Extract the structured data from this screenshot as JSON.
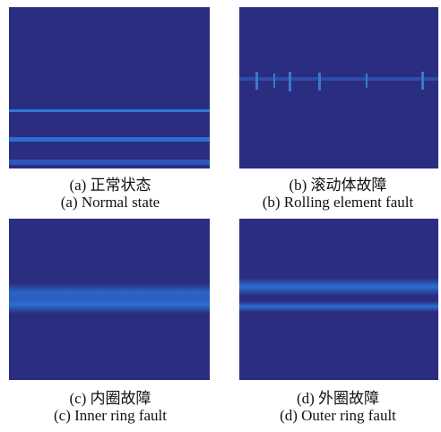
{
  "panels": [
    {
      "caption_cn": "(a)  正常状态",
      "caption_en": "(a)  Normal state"
    },
    {
      "caption_cn": "(b)  滚动体故障",
      "caption_en": "(b)  Rolling element fault"
    },
    {
      "caption_cn": "(c)  内圈故障",
      "caption_en": "(c)  Inner ring fault"
    },
    {
      "caption_cn": "(d)  外圈故障",
      "caption_en": "(d)  Outer ring fault"
    }
  ]
}
